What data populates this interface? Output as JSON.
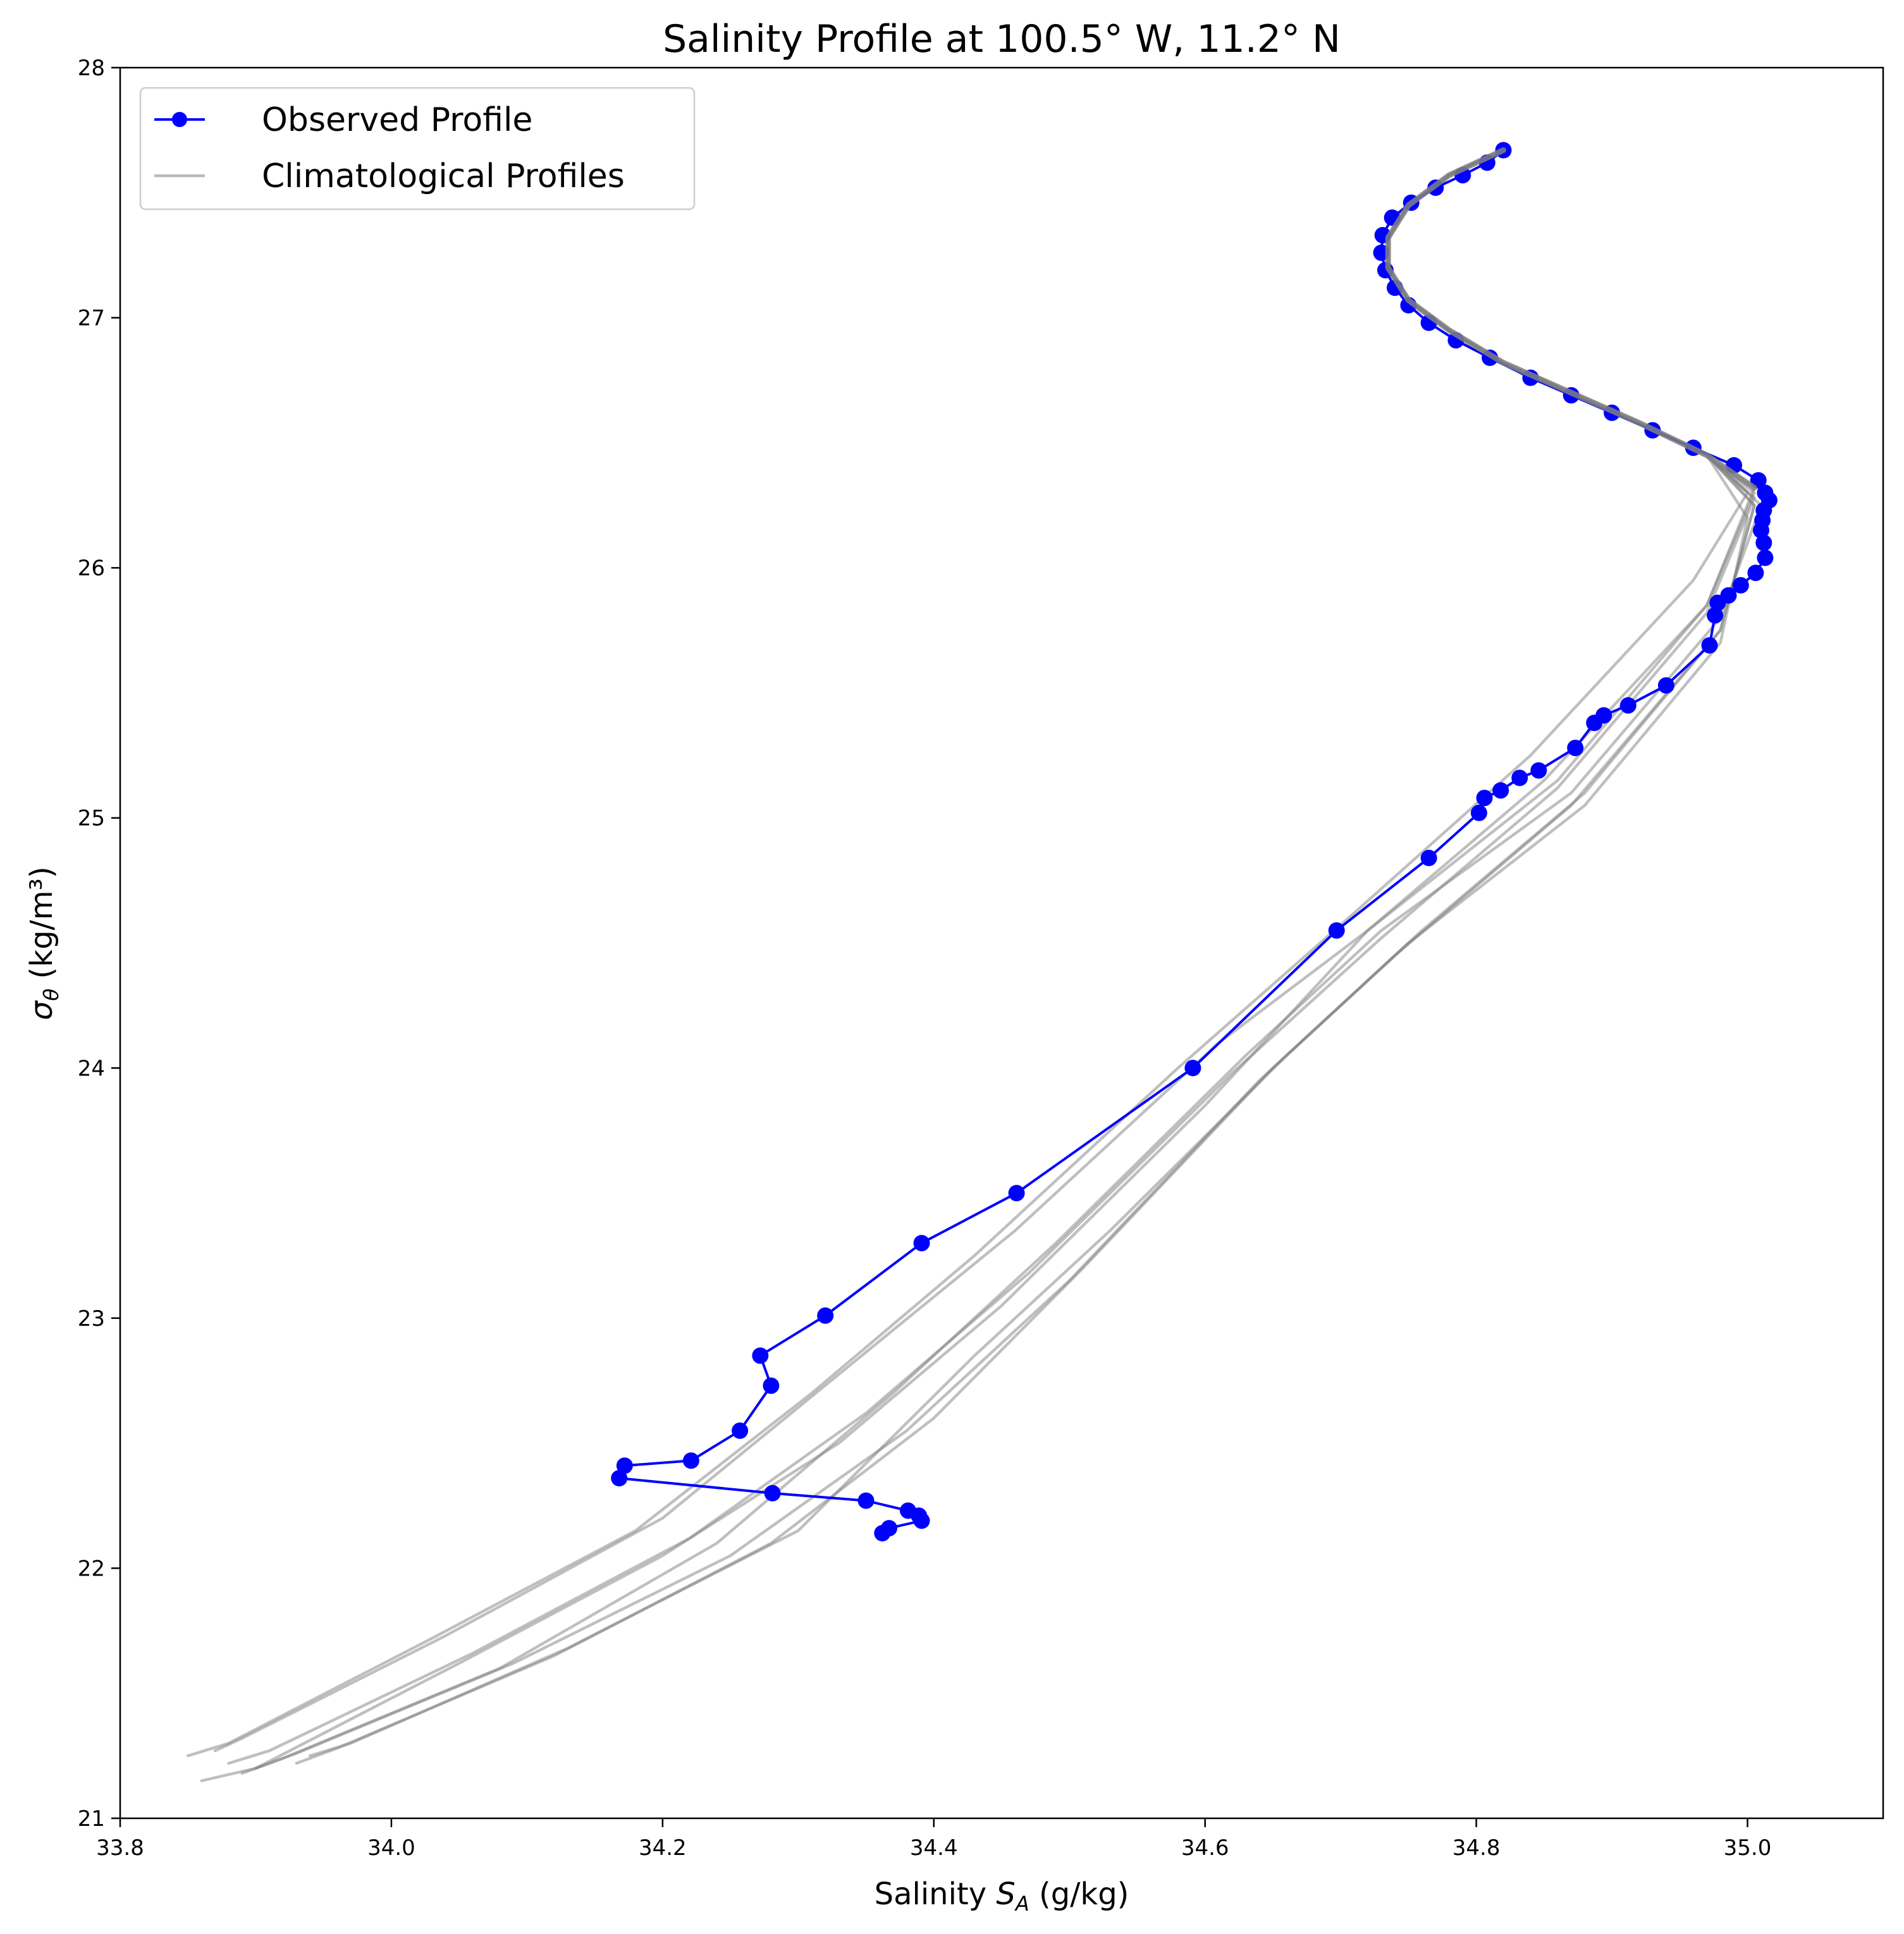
{
  "chart_data": {
    "type": "line",
    "title": "Salinity Profile at 100.5° W, 11.2° N",
    "xlabel": {
      "prefix": "Salinity ",
      "symbol": "S",
      "subscript": "A",
      "suffix": " (g/kg)"
    },
    "ylabel": {
      "symbol": "σ",
      "subscript": "θ",
      "suffix": " (kg/m³)"
    },
    "xlim": [
      33.8,
      35.1
    ],
    "ylim": [
      21,
      28
    ],
    "xticks": [
      "33.8",
      "34.0",
      "34.2",
      "34.4",
      "34.6",
      "34.8",
      "35.0"
    ],
    "yticks": [
      "21",
      "22",
      "23",
      "24",
      "25",
      "26",
      "27",
      "28"
    ],
    "grid": false,
    "legend": {
      "position": "top-left",
      "observed": "Observed Profile",
      "climatology": "Climatological Profiles"
    },
    "colors": {
      "observed": "#0000ff",
      "climatology": "#808080"
    },
    "observed": {
      "name": "Observed Profile",
      "x": [
        34.362,
        34.367,
        34.391,
        34.389,
        34.381,
        34.35,
        34.281,
        34.168,
        34.172,
        34.221,
        34.257,
        34.28,
        34.272,
        34.32,
        34.391,
        34.461,
        34.591,
        34.697,
        34.765,
        34.802,
        34.806,
        34.818,
        34.832,
        34.846,
        34.873,
        34.887,
        34.894,
        34.912,
        34.94,
        34.972,
        34.976,
        34.978,
        34.986,
        34.995,
        35.006,
        35.013,
        35.012,
        35.01,
        35.011,
        35.012,
        35.016,
        35.013,
        35.008,
        34.99,
        34.96,
        34.93,
        34.9,
        34.87,
        34.84,
        34.81,
        34.785,
        34.765,
        34.75,
        34.74,
        34.733,
        34.73,
        34.731,
        34.738,
        34.752,
        34.77,
        34.79,
        34.808,
        34.82
      ],
      "y": [
        22.14,
        22.16,
        22.19,
        22.21,
        22.23,
        22.27,
        22.3,
        22.36,
        22.41,
        22.43,
        22.55,
        22.73,
        22.85,
        23.01,
        23.3,
        23.5,
        24.0,
        24.55,
        24.84,
        25.02,
        25.08,
        25.11,
        25.16,
        25.19,
        25.28,
        25.38,
        25.41,
        25.45,
        25.53,
        25.69,
        25.81,
        25.86,
        25.89,
        25.93,
        25.98,
        26.04,
        26.1,
        26.15,
        26.19,
        26.23,
        26.27,
        26.3,
        26.35,
        26.41,
        26.48,
        26.55,
        26.62,
        26.69,
        26.76,
        26.84,
        26.91,
        26.98,
        27.05,
        27.12,
        27.19,
        27.26,
        27.33,
        27.4,
        27.46,
        27.52,
        27.57,
        27.62,
        27.67
      ]
    },
    "climatology": [
      {
        "x": [
          33.86,
          33.9,
          34.05,
          34.2,
          34.33,
          34.45,
          34.6,
          34.72,
          34.85,
          34.97,
          35.005,
          34.97,
          34.92,
          34.87,
          34.82,
          34.78,
          34.75,
          34.735,
          34.735,
          34.75,
          34.78,
          34.82
        ],
        "y": [
          21.15,
          21.2,
          21.62,
          22.05,
          22.5,
          23.05,
          23.85,
          24.55,
          25.15,
          25.85,
          26.32,
          26.45,
          26.58,
          26.7,
          26.82,
          26.95,
          27.07,
          27.2,
          27.32,
          27.45,
          27.57,
          27.67
        ]
      },
      {
        "x": [
          33.85,
          33.88,
          34.03,
          34.18,
          34.31,
          34.43,
          34.58,
          34.71,
          34.84,
          34.96,
          35.0,
          34.97,
          34.92,
          34.87,
          34.82,
          34.78,
          34.75,
          34.735,
          34.735,
          34.75,
          34.78,
          34.82
        ],
        "y": [
          21.25,
          21.3,
          21.72,
          22.15,
          22.7,
          23.25,
          24.0,
          24.62,
          25.25,
          25.95,
          26.3,
          26.45,
          26.58,
          26.7,
          26.82,
          26.95,
          27.07,
          27.2,
          27.32,
          27.45,
          27.57,
          27.67
        ]
      },
      {
        "x": [
          33.87,
          33.89,
          34.04,
          34.2,
          34.34,
          34.46,
          34.61,
          34.72,
          34.86,
          34.97,
          35.005,
          34.97,
          34.92,
          34.87,
          34.82,
          34.78,
          34.75,
          34.735,
          34.735,
          34.75,
          34.78,
          34.82
        ],
        "y": [
          21.27,
          21.32,
          21.73,
          22.2,
          22.82,
          23.35,
          24.1,
          24.55,
          25.15,
          25.85,
          26.3,
          26.45,
          26.58,
          26.7,
          26.82,
          26.95,
          27.07,
          27.2,
          27.32,
          27.45,
          27.57,
          27.67
        ]
      },
      {
        "x": [
          33.89,
          33.92,
          34.08,
          34.24,
          34.37,
          34.49,
          34.63,
          34.73,
          34.87,
          34.98,
          35.01,
          34.97,
          34.92,
          34.87,
          34.82,
          34.78,
          34.75,
          34.735,
          34.735,
          34.75,
          34.78,
          34.82
        ],
        "y": [
          21.18,
          21.24,
          21.6,
          22.1,
          22.7,
          23.3,
          24.05,
          24.55,
          25.1,
          25.8,
          26.25,
          26.45,
          26.58,
          26.7,
          26.82,
          26.95,
          27.07,
          27.2,
          27.32,
          27.45,
          27.57,
          27.67
        ]
      },
      {
        "x": [
          33.9,
          33.93,
          34.09,
          34.25,
          34.38,
          34.5,
          34.64,
          34.74,
          34.87,
          34.98,
          35.005,
          34.97,
          34.92,
          34.87,
          34.82,
          34.78,
          34.75,
          34.735,
          34.735,
          34.75,
          34.78,
          34.82
        ],
        "y": [
          21.2,
          21.26,
          21.62,
          22.05,
          22.55,
          23.15,
          23.95,
          24.45,
          25.05,
          25.75,
          26.25,
          26.45,
          26.58,
          26.7,
          26.82,
          26.95,
          27.07,
          27.2,
          27.32,
          27.45,
          27.57,
          27.67
        ]
      },
      {
        "x": [
          33.93,
          33.96,
          34.12,
          34.28,
          34.4,
          34.51,
          34.65,
          34.75,
          34.88,
          34.98,
          35.0,
          34.97,
          34.92,
          34.87,
          34.82,
          34.78,
          34.75,
          34.735,
          34.735,
          34.75,
          34.78,
          34.82
        ],
        "y": [
          21.22,
          21.28,
          21.65,
          22.1,
          22.6,
          23.2,
          24.0,
          24.5,
          25.05,
          25.7,
          26.2,
          26.45,
          26.58,
          26.7,
          26.82,
          26.95,
          27.07,
          27.2,
          27.32,
          27.45,
          27.57,
          27.67
        ]
      },
      {
        "x": [
          33.94,
          33.97,
          34.13,
          34.3,
          34.43,
          34.53,
          34.66,
          34.76,
          34.88,
          34.98,
          35.005,
          34.97,
          34.92,
          34.87,
          34.82,
          34.78,
          34.75,
          34.735,
          34.735,
          34.75,
          34.78,
          34.82
        ],
        "y": [
          21.25,
          21.3,
          21.68,
          22.15,
          22.85,
          23.35,
          24.05,
          24.55,
          25.1,
          25.75,
          26.25,
          26.45,
          26.58,
          26.7,
          26.82,
          26.95,
          27.07,
          27.2,
          27.32,
          27.45,
          27.57,
          27.67
        ]
      },
      {
        "x": [
          33.88,
          33.91,
          34.06,
          34.22,
          34.35,
          34.47,
          34.62,
          34.73,
          34.86,
          34.97,
          35.005,
          34.97,
          34.92,
          34.87,
          34.82,
          34.78,
          34.75,
          34.735,
          34.735,
          34.75,
          34.78,
          34.82
        ],
        "y": [
          21.22,
          21.27,
          21.66,
          22.12,
          22.62,
          23.18,
          23.98,
          24.52,
          25.12,
          25.82,
          26.28,
          26.45,
          26.58,
          26.7,
          26.82,
          26.95,
          27.07,
          27.2,
          27.32,
          27.45,
          27.57,
          27.67
        ]
      }
    ]
  }
}
